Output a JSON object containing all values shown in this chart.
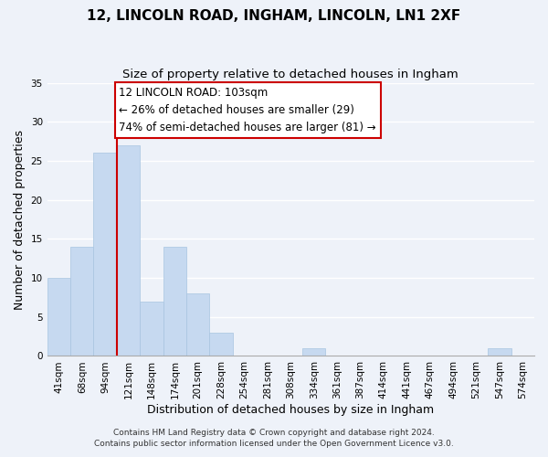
{
  "title": "12, LINCOLN ROAD, INGHAM, LINCOLN, LN1 2XF",
  "subtitle": "Size of property relative to detached houses in Ingham",
  "xlabel": "Distribution of detached houses by size in Ingham",
  "ylabel": "Number of detached properties",
  "bar_labels": [
    "41sqm",
    "68sqm",
    "94sqm",
    "121sqm",
    "148sqm",
    "174sqm",
    "201sqm",
    "228sqm",
    "254sqm",
    "281sqm",
    "308sqm",
    "334sqm",
    "361sqm",
    "387sqm",
    "414sqm",
    "441sqm",
    "467sqm",
    "494sqm",
    "521sqm",
    "547sqm",
    "574sqm"
  ],
  "bar_values": [
    10,
    14,
    26,
    27,
    7,
    14,
    8,
    3,
    0,
    0,
    0,
    1,
    0,
    0,
    0,
    0,
    0,
    0,
    0,
    1,
    0
  ],
  "bar_color": "#c6d9f0",
  "bar_edge_color": "#a8c4e0",
  "vline_index": 3,
  "vline_color": "#cc0000",
  "ylim": [
    0,
    35
  ],
  "yticks": [
    0,
    5,
    10,
    15,
    20,
    25,
    30,
    35
  ],
  "annotation_title": "12 LINCOLN ROAD: 103sqm",
  "annotation_line1": "← 26% of detached houses are smaller (29)",
  "annotation_line2": "74% of semi-detached houses are larger (81) →",
  "footnote1": "Contains HM Land Registry data © Crown copyright and database right 2024.",
  "footnote2": "Contains public sector information licensed under the Open Government Licence v3.0.",
  "background_color": "#eef2f9",
  "plot_background": "#eef2f9",
  "annotation_box_facecolor": "#ffffff",
  "annotation_box_edgecolor": "#cc0000",
  "title_fontsize": 11,
  "subtitle_fontsize": 9.5,
  "axis_label_fontsize": 9,
  "tick_fontsize": 7.5,
  "annotation_fontsize": 8.5,
  "footnote_fontsize": 6.5
}
